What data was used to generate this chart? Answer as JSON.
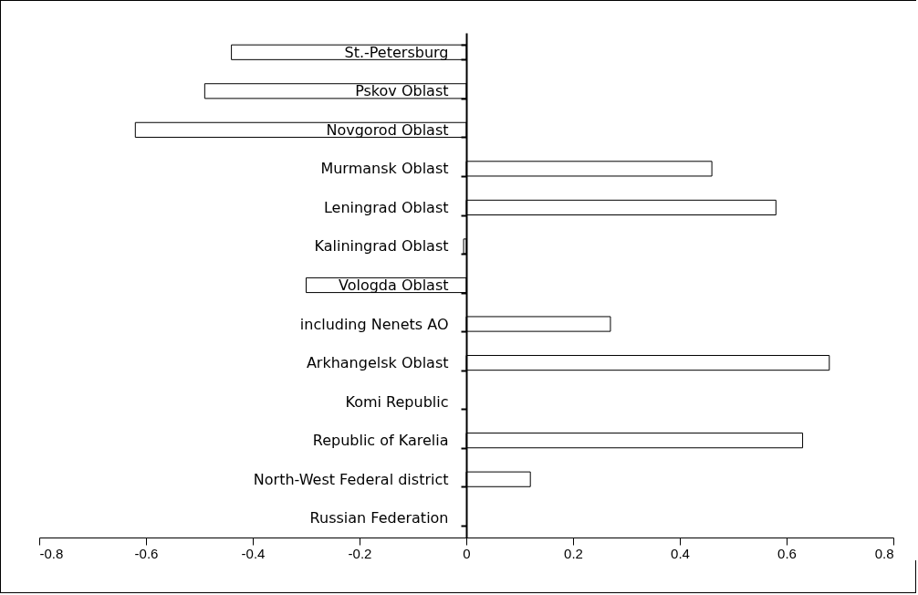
{
  "chart_data": {
    "type": "bar",
    "orientation": "horizontal",
    "categories": [
      "St.-Petersburg",
      "Pskov Oblast",
      "Novgorod Oblast",
      "Murmansk Oblast",
      "Leningrad Oblast",
      "Kaliningrad Oblast",
      "Vologda Oblast",
      "including Nenets AO",
      "Arkhangelsk Oblast",
      "Komi Republic",
      "Republic of Karelia",
      "North-West Federal district",
      "Russian Federation"
    ],
    "values": [
      -0.44,
      -0.49,
      -0.62,
      0.46,
      0.58,
      -0.005,
      -0.3,
      0.27,
      0.68,
      0,
      0.63,
      0.12,
      0
    ],
    "color": "#ffffff",
    "xlim": [
      -0.8,
      0.8
    ],
    "xticks": [
      -0.8,
      -0.6,
      -0.4,
      -0.2,
      0,
      0.2,
      0.4,
      0.6,
      0.8
    ],
    "grid": false
  }
}
